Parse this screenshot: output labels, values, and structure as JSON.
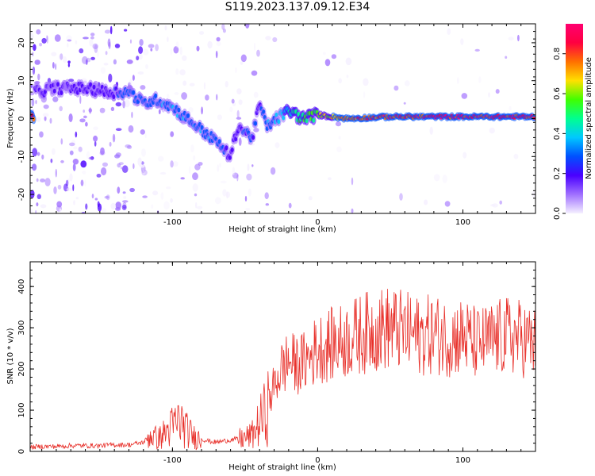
{
  "title": "S119.2023.137.09.12.E34",
  "colors": {
    "snr_line": "#e8302a",
    "axis": "#000000"
  },
  "chart_data": [
    {
      "type": "heatmap",
      "title": "S119.2023.137.09.12.E34",
      "xlabel": "Height of straight line (km)",
      "ylabel": "Frequency (Hz)",
      "xlim": [
        -198,
        150
      ],
      "ylim": [
        -25,
        25
      ],
      "xticks": [
        -100,
        0,
        100
      ],
      "yticks": [
        -20,
        -10,
        0,
        10,
        20
      ],
      "xtick_labels": [
        "-100",
        "0",
        "100"
      ],
      "ytick_labels": [
        "-20",
        "-10",
        "0",
        "10",
        "20"
      ],
      "colorbar": {
        "label": "Normalized spectral amplitude",
        "range": [
          0,
          0.95
        ],
        "ticks": [
          0.0,
          0.2,
          0.4,
          0.6,
          0.8
        ],
        "tick_labels": [
          "0.0",
          "0.2",
          "0.4",
          "0.6",
          "0.8"
        ],
        "colormap": [
          "#f5f0ff",
          "#a070ff",
          "#4a00ff",
          "#0050ff",
          "#00c8ff",
          "#00ff90",
          "#40ff00",
          "#ffe000",
          "#ff7000",
          "#ff0040",
          "#ff0070"
        ]
      },
      "ridge": [
        {
          "x": -195,
          "y": 7,
          "amp": 0.15
        },
        {
          "x": -180,
          "y": 8,
          "amp": 0.15
        },
        {
          "x": -160,
          "y": 8,
          "amp": 0.18
        },
        {
          "x": -145,
          "y": 7,
          "amp": 0.22
        },
        {
          "x": -130,
          "y": 7,
          "amp": 0.28
        },
        {
          "x": -120,
          "y": 4,
          "amp": 0.3
        },
        {
          "x": -110,
          "y": 5,
          "amp": 0.32
        },
        {
          "x": -100,
          "y": 3,
          "amp": 0.32
        },
        {
          "x": -90,
          "y": 0,
          "amp": 0.3
        },
        {
          "x": -80,
          "y": -3,
          "amp": 0.32
        },
        {
          "x": -70,
          "y": -6,
          "amp": 0.32
        },
        {
          "x": -60,
          "y": -10,
          "amp": 0.2
        },
        {
          "x": -55,
          "y": -2,
          "amp": 0.2
        },
        {
          "x": -45,
          "y": -5,
          "amp": 0.28
        },
        {
          "x": -40,
          "y": 4,
          "amp": 0.2
        },
        {
          "x": -35,
          "y": -2,
          "amp": 0.3
        },
        {
          "x": -28,
          "y": 0,
          "amp": 0.35
        },
        {
          "x": -20,
          "y": 2,
          "amp": 0.45
        },
        {
          "x": -10,
          "y": 0,
          "amp": 0.55
        },
        {
          "x": 0,
          "y": 1,
          "amp": 0.6
        },
        {
          "x": 20,
          "y": 0,
          "amp": 0.75
        },
        {
          "x": 50,
          "y": 0.5,
          "amp": 0.85
        },
        {
          "x": 80,
          "y": 0.5,
          "amp": 0.9
        },
        {
          "x": 110,
          "y": 0.5,
          "amp": 0.9
        },
        {
          "x": 150,
          "y": 0.5,
          "amp": 0.88
        }
      ]
    },
    {
      "type": "line",
      "xlabel": "Height of straight line (km)",
      "ylabel": "SNR (10 * v/v)",
      "xlim": [
        -198,
        150
      ],
      "ylim": [
        0,
        460
      ],
      "xticks": [
        -100,
        0,
        100
      ],
      "yticks": [
        0,
        100,
        200,
        300,
        400
      ],
      "xtick_labels": [
        "-100",
        "0",
        "100"
      ],
      "ytick_labels": [
        "0",
        "100",
        "200",
        "300",
        "400"
      ],
      "series": [
        {
          "x": [
            -198,
            -190,
            -180,
            -170,
            -160,
            -150,
            -140,
            -130,
            -120,
            -115,
            -110,
            -105,
            -100,
            -95,
            -90,
            -85,
            -80,
            -75,
            -70,
            -65,
            -60,
            -55,
            -50,
            -45,
            -40,
            -35,
            -30,
            -25,
            -20,
            -15,
            -10,
            -5,
            0,
            5,
            10,
            20,
            30,
            40,
            50,
            60,
            70,
            80,
            90,
            100,
            110,
            120,
            130,
            140,
            150
          ],
          "values": [
            10,
            12,
            12,
            14,
            14,
            14,
            16,
            16,
            22,
            40,
            30,
            45,
            60,
            75,
            50,
            35,
            30,
            25,
            22,
            25,
            28,
            30,
            32,
            40,
            70,
            100,
            160,
            200,
            220,
            210,
            215,
            230,
            250,
            255,
            260,
            270,
            285,
            295,
            300,
            290,
            280,
            285,
            275,
            280,
            260,
            270,
            280,
            275,
            260
          ]
        }
      ]
    }
  ]
}
